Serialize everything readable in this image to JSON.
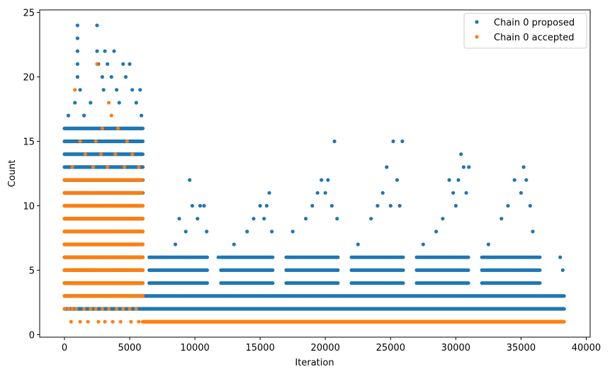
{
  "chart_data": {
    "type": "scatter",
    "title": "",
    "xlabel": "Iteration",
    "ylabel": "Count",
    "xlim": [
      -1900,
      40300
    ],
    "ylim": [
      -0.2,
      25.2
    ],
    "xticks": [
      0,
      5000,
      10000,
      15000,
      20000,
      25000,
      30000,
      35000,
      40000
    ],
    "yticks": [
      0,
      5,
      10,
      15,
      20,
      25
    ],
    "grid": false,
    "legend_position": "top-right",
    "series": [
      {
        "name": "Chain 0 proposed",
        "color": "#1f77b4",
        "segments": [
          {
            "x0": 0,
            "x1": 6000,
            "step": 50,
            "levels": [
              2,
              3,
              4,
              5,
              6,
              7,
              8,
              9,
              10,
              11,
              12,
              13,
              14,
              15,
              16
            ]
          },
          {
            "x0": 6000,
            "x1": 38300,
            "step": 50,
            "levels": [
              2,
              3
            ]
          },
          {
            "x0": 6500,
            "x1": 11000,
            "step": 120,
            "levels": [
              4,
              5,
              6
            ]
          },
          {
            "x0": 12000,
            "x1": 16000,
            "step": 120,
            "levels": [
              4,
              5,
              6
            ]
          },
          {
            "x0": 17000,
            "x1": 21000,
            "step": 120,
            "levels": [
              4,
              5,
              6
            ]
          },
          {
            "x0": 22000,
            "x1": 26000,
            "step": 120,
            "levels": [
              4,
              5,
              6
            ]
          },
          {
            "x0": 27000,
            "x1": 31000,
            "step": 120,
            "levels": [
              4,
              5,
              6
            ]
          },
          {
            "x0": 32000,
            "x1": 36500,
            "step": 120,
            "levels": [
              4,
              5,
              6
            ]
          }
        ],
        "points": [
          {
            "x": 300,
            "y": 17
          },
          {
            "x": 800,
            "y": 18
          },
          {
            "x": 1000,
            "y": 24
          },
          {
            "x": 1000,
            "y": 23
          },
          {
            "x": 1000,
            "y": 22
          },
          {
            "x": 1000,
            "y": 21
          },
          {
            "x": 1000,
            "y": 20
          },
          {
            "x": 1200,
            "y": 19
          },
          {
            "x": 1500,
            "y": 17
          },
          {
            "x": 2000,
            "y": 18
          },
          {
            "x": 2500,
            "y": 24
          },
          {
            "x": 2500,
            "y": 22
          },
          {
            "x": 2600,
            "y": 21
          },
          {
            "x": 2900,
            "y": 20
          },
          {
            "x": 3000,
            "y": 19
          },
          {
            "x": 3100,
            "y": 22
          },
          {
            "x": 3300,
            "y": 21
          },
          {
            "x": 3600,
            "y": 20
          },
          {
            "x": 3800,
            "y": 22
          },
          {
            "x": 4000,
            "y": 19
          },
          {
            "x": 4200,
            "y": 18
          },
          {
            "x": 4500,
            "y": 21
          },
          {
            "x": 4700,
            "y": 20
          },
          {
            "x": 5000,
            "y": 21
          },
          {
            "x": 5200,
            "y": 19
          },
          {
            "x": 5500,
            "y": 18
          },
          {
            "x": 5800,
            "y": 19
          },
          {
            "x": 5900,
            "y": 17
          },
          {
            "x": 7500,
            "y": 6
          },
          {
            "x": 8500,
            "y": 7
          },
          {
            "x": 8800,
            "y": 9
          },
          {
            "x": 9300,
            "y": 8
          },
          {
            "x": 9600,
            "y": 12
          },
          {
            "x": 9800,
            "y": 10
          },
          {
            "x": 10200,
            "y": 9
          },
          {
            "x": 10400,
            "y": 10
          },
          {
            "x": 10700,
            "y": 10
          },
          {
            "x": 10900,
            "y": 8
          },
          {
            "x": 11800,
            "y": 6
          },
          {
            "x": 13000,
            "y": 7
          },
          {
            "x": 14000,
            "y": 8
          },
          {
            "x": 14500,
            "y": 9
          },
          {
            "x": 15000,
            "y": 10
          },
          {
            "x": 15300,
            "y": 9
          },
          {
            "x": 15500,
            "y": 10
          },
          {
            "x": 15700,
            "y": 11
          },
          {
            "x": 15900,
            "y": 8
          },
          {
            "x": 17500,
            "y": 8
          },
          {
            "x": 18500,
            "y": 9
          },
          {
            "x": 19000,
            "y": 10
          },
          {
            "x": 19400,
            "y": 11
          },
          {
            "x": 19700,
            "y": 12
          },
          {
            "x": 20000,
            "y": 11
          },
          {
            "x": 20200,
            "y": 12
          },
          {
            "x": 20500,
            "y": 10
          },
          {
            "x": 20700,
            "y": 15
          },
          {
            "x": 20900,
            "y": 9
          },
          {
            "x": 22500,
            "y": 7
          },
          {
            "x": 23500,
            "y": 9
          },
          {
            "x": 24000,
            "y": 10
          },
          {
            "x": 24400,
            "y": 11
          },
          {
            "x": 24700,
            "y": 13
          },
          {
            "x": 25000,
            "y": 10
          },
          {
            "x": 25200,
            "y": 15
          },
          {
            "x": 25500,
            "y": 12
          },
          {
            "x": 25700,
            "y": 10
          },
          {
            "x": 25900,
            "y": 15
          },
          {
            "x": 27500,
            "y": 7
          },
          {
            "x": 28500,
            "y": 8
          },
          {
            "x": 29000,
            "y": 9
          },
          {
            "x": 29500,
            "y": 12
          },
          {
            "x": 29800,
            "y": 11
          },
          {
            "x": 30000,
            "y": 10
          },
          {
            "x": 30200,
            "y": 12
          },
          {
            "x": 30400,
            "y": 14
          },
          {
            "x": 30600,
            "y": 13
          },
          {
            "x": 30800,
            "y": 11
          },
          {
            "x": 31000,
            "y": 13
          },
          {
            "x": 32500,
            "y": 7
          },
          {
            "x": 33500,
            "y": 9
          },
          {
            "x": 34000,
            "y": 10
          },
          {
            "x": 34500,
            "y": 12
          },
          {
            "x": 35000,
            "y": 11
          },
          {
            "x": 35200,
            "y": 13
          },
          {
            "x": 35400,
            "y": 12
          },
          {
            "x": 35700,
            "y": 10
          },
          {
            "x": 35900,
            "y": 8
          },
          {
            "x": 38000,
            "y": 6
          },
          {
            "x": 38200,
            "y": 5
          }
        ]
      },
      {
        "name": "Chain 0 accepted",
        "color": "#ff7f0e",
        "segments": [
          {
            "x0": 0,
            "x1": 6000,
            "step": 50,
            "levels": [
              3,
              4,
              5,
              6,
              7,
              8,
              9,
              10
            ]
          },
          {
            "x0": 0,
            "x1": 6000,
            "step": 90,
            "levels": [
              11,
              12
            ]
          },
          {
            "x0": 6000,
            "x1": 38300,
            "step": 50,
            "levels": [
              1
            ]
          }
        ],
        "points": [
          {
            "x": 0,
            "y": 2
          },
          {
            "x": 300,
            "y": 2
          },
          {
            "x": 600,
            "y": 2
          },
          {
            "x": 900,
            "y": 2
          },
          {
            "x": 1500,
            "y": 2
          },
          {
            "x": 2000,
            "y": 2
          },
          {
            "x": 2400,
            "y": 2
          },
          {
            "x": 2900,
            "y": 2
          },
          {
            "x": 3400,
            "y": 2
          },
          {
            "x": 4000,
            "y": 2
          },
          {
            "x": 4500,
            "y": 2
          },
          {
            "x": 5000,
            "y": 2
          },
          {
            "x": 5500,
            "y": 2
          },
          {
            "x": 500,
            "y": 1
          },
          {
            "x": 1200,
            "y": 1
          },
          {
            "x": 1800,
            "y": 1
          },
          {
            "x": 2600,
            "y": 1
          },
          {
            "x": 3100,
            "y": 1
          },
          {
            "x": 3700,
            "y": 1
          },
          {
            "x": 4300,
            "y": 1
          },
          {
            "x": 5100,
            "y": 1
          },
          {
            "x": 5700,
            "y": 1
          },
          {
            "x": 600,
            "y": 13
          },
          {
            "x": 1600,
            "y": 14
          },
          {
            "x": 2200,
            "y": 13
          },
          {
            "x": 2800,
            "y": 14
          },
          {
            "x": 3300,
            "y": 13
          },
          {
            "x": 3900,
            "y": 14
          },
          {
            "x": 4600,
            "y": 13
          },
          {
            "x": 5200,
            "y": 14
          },
          {
            "x": 5700,
            "y": 13
          },
          {
            "x": 1200,
            "y": 15
          },
          {
            "x": 2400,
            "y": 15
          },
          {
            "x": 4800,
            "y": 15
          },
          {
            "x": 2900,
            "y": 16
          },
          {
            "x": 4100,
            "y": 16
          },
          {
            "x": 3600,
            "y": 17
          },
          {
            "x": 2500,
            "y": 21
          },
          {
            "x": 800,
            "y": 19
          },
          {
            "x": 3400,
            "y": 18
          }
        ]
      }
    ]
  }
}
